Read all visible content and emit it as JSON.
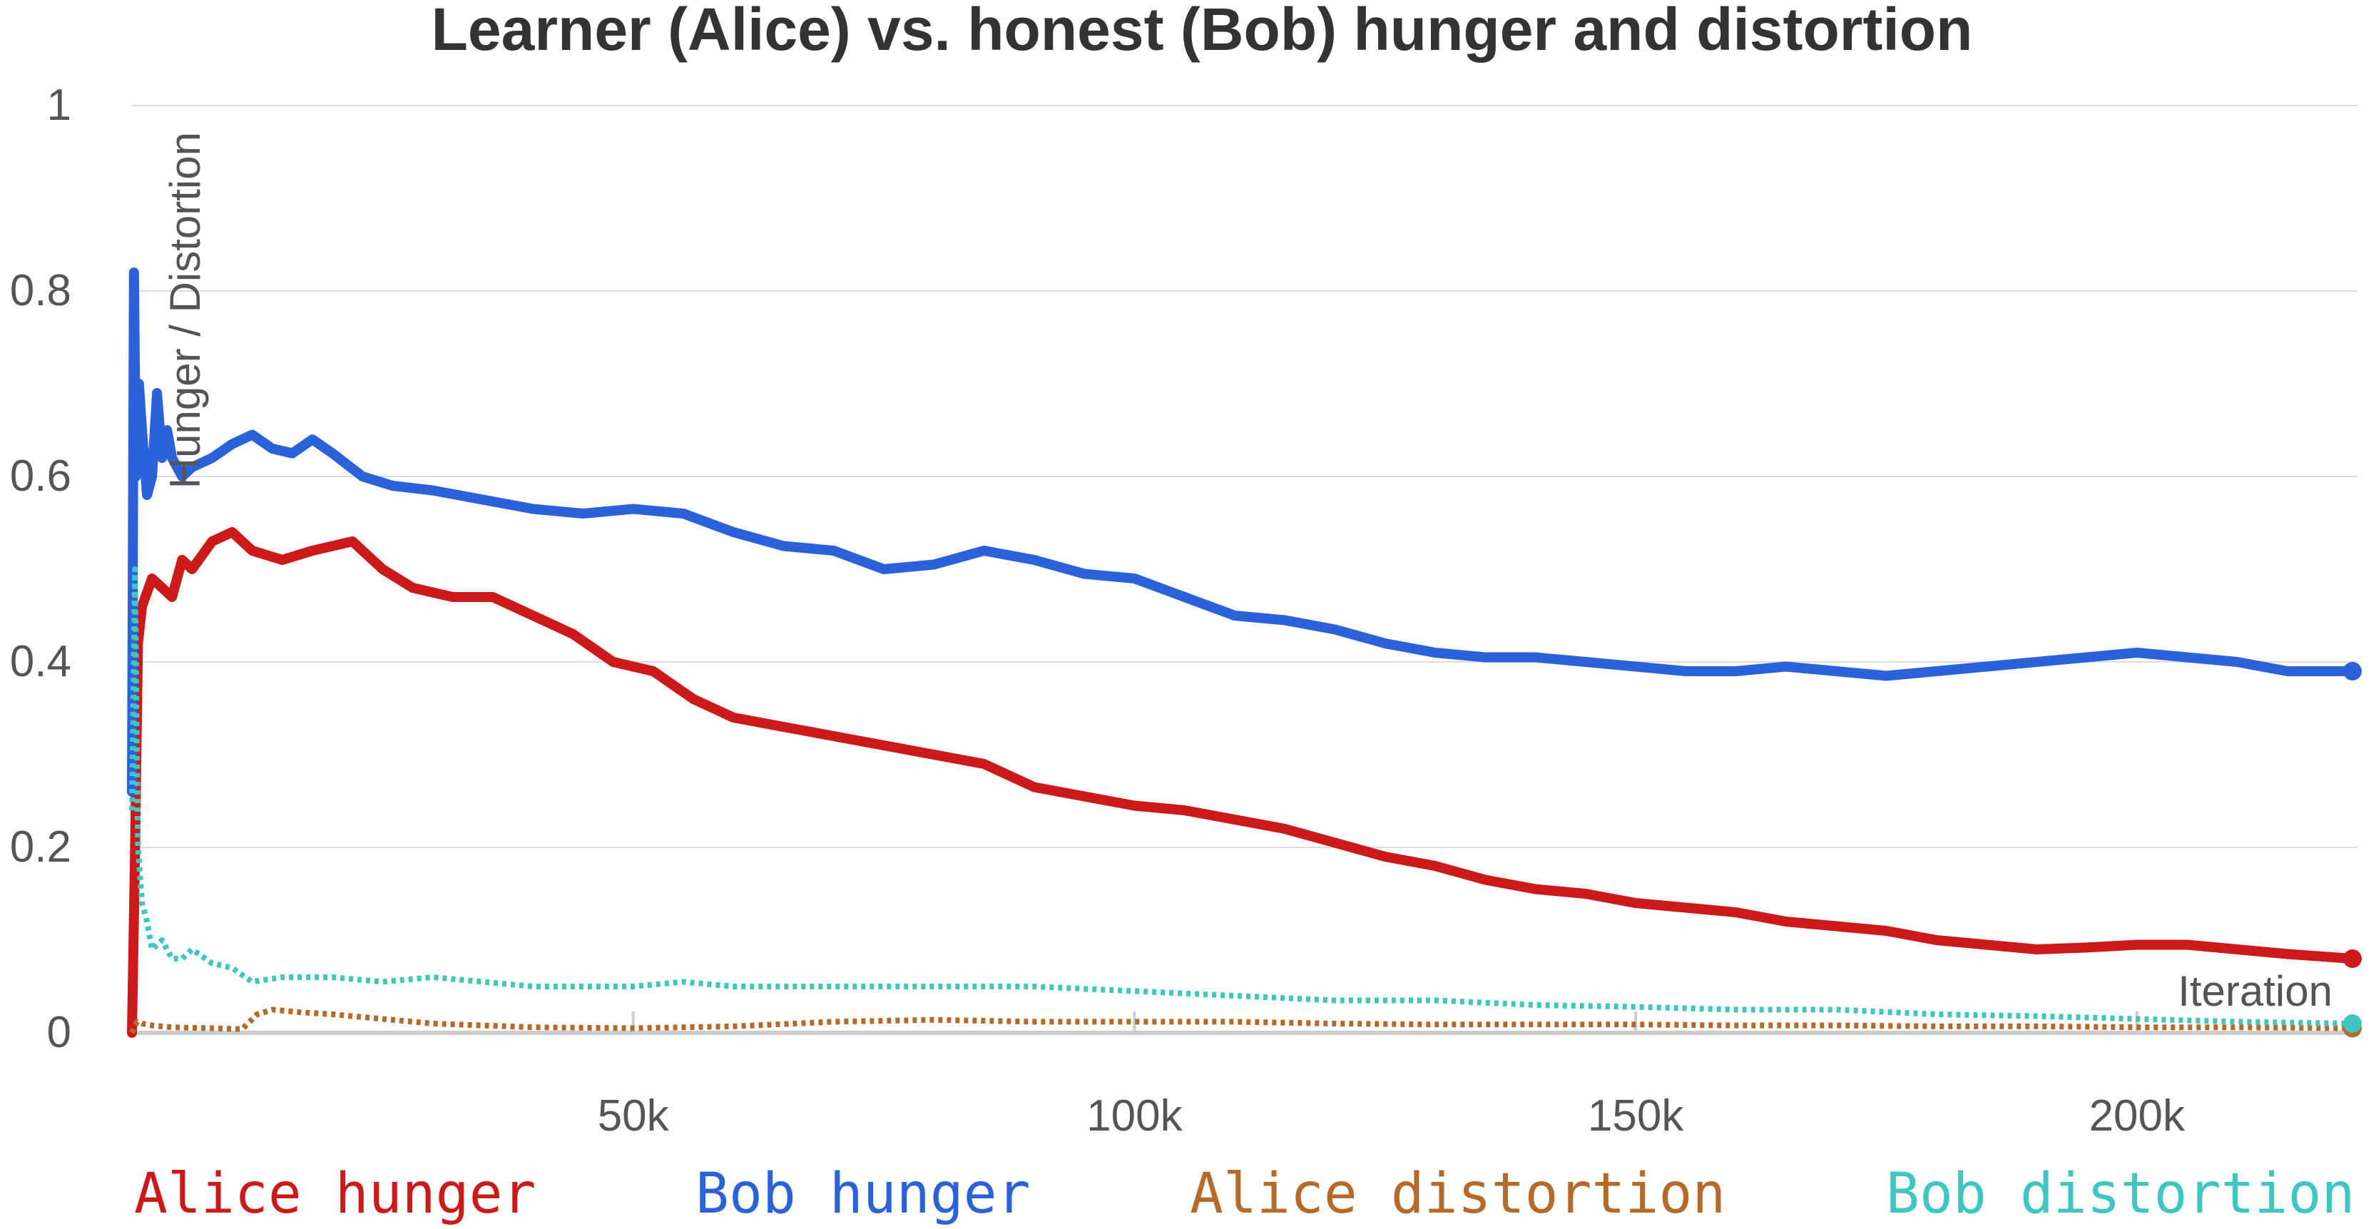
{
  "chart_data": {
    "type": "line",
    "title": "Learner (Alice) vs. honest (Bob) hunger and distortion",
    "xlabel": "Iteration",
    "ylabel": "Hunger / Distortion",
    "xlim": [
      0,
      222000
    ],
    "ylim": [
      0,
      1
    ],
    "x_ticks": [
      {
        "value": 50000,
        "label": "50k"
      },
      {
        "value": 100000,
        "label": "100k"
      },
      {
        "value": 150000,
        "label": "150k"
      },
      {
        "value": 200000,
        "label": "200k"
      }
    ],
    "y_ticks": [
      {
        "value": 0,
        "label": "0"
      },
      {
        "value": 0.2,
        "label": "0.2"
      },
      {
        "value": 0.4,
        "label": "0.4"
      },
      {
        "value": 0.6,
        "label": "0.6"
      },
      {
        "value": 0.8,
        "label": "0.8"
      },
      {
        "value": 1,
        "label": "1"
      }
    ],
    "grid": true,
    "legend_position": "bottom",
    "series": [
      {
        "name": "Alice hunger",
        "color": "#cc1a1a",
        "style": "solid",
        "x": [
          0,
          300,
          600,
          1000,
          2000,
          3000,
          4000,
          5000,
          6000,
          8000,
          10000,
          12000,
          15000,
          18000,
          22000,
          25000,
          28000,
          32000,
          36000,
          40000,
          44000,
          48000,
          52000,
          56000,
          60000,
          65000,
          70000,
          75000,
          80000,
          85000,
          90000,
          95000,
          100000,
          105000,
          110000,
          115000,
          120000,
          125000,
          130000,
          135000,
          140000,
          145000,
          150000,
          155000,
          160000,
          165000,
          170000,
          175000,
          180000,
          185000,
          190000,
          195000,
          200000,
          205000,
          210000,
          215000,
          221500
        ],
        "y": [
          0.0,
          0.19,
          0.42,
          0.46,
          0.49,
          0.48,
          0.47,
          0.51,
          0.5,
          0.53,
          0.54,
          0.52,
          0.51,
          0.52,
          0.53,
          0.5,
          0.48,
          0.47,
          0.47,
          0.45,
          0.43,
          0.4,
          0.39,
          0.36,
          0.34,
          0.33,
          0.32,
          0.31,
          0.3,
          0.29,
          0.265,
          0.255,
          0.245,
          0.24,
          0.23,
          0.22,
          0.205,
          0.19,
          0.18,
          0.165,
          0.155,
          0.15,
          0.14,
          0.135,
          0.13,
          0.12,
          0.115,
          0.11,
          0.1,
          0.095,
          0.09,
          0.092,
          0.095,
          0.095,
          0.09,
          0.085,
          0.08
        ]
      },
      {
        "name": "Bob hunger",
        "color": "#2b62d9",
        "style": "solid",
        "x": [
          0,
          200,
          400,
          700,
          1000,
          1500,
          2000,
          2500,
          3000,
          3500,
          4000,
          5000,
          6000,
          8000,
          10000,
          12000,
          14000,
          16000,
          18000,
          20000,
          23000,
          26000,
          30000,
          35000,
          40000,
          45000,
          50000,
          55000,
          60000,
          65000,
          70000,
          75000,
          80000,
          85000,
          90000,
          95000,
          100000,
          105000,
          110000,
          115000,
          120000,
          125000,
          130000,
          135000,
          140000,
          145000,
          150000,
          155000,
          160000,
          165000,
          170000,
          175000,
          180000,
          185000,
          190000,
          195000,
          200000,
          205000,
          210000,
          215000,
          221500
        ],
        "y": [
          0.26,
          0.82,
          0.6,
          0.7,
          0.65,
          0.58,
          0.6,
          0.69,
          0.62,
          0.65,
          0.62,
          0.6,
          0.61,
          0.62,
          0.635,
          0.645,
          0.63,
          0.625,
          0.64,
          0.625,
          0.6,
          0.59,
          0.585,
          0.575,
          0.565,
          0.56,
          0.565,
          0.56,
          0.54,
          0.525,
          0.52,
          0.5,
          0.505,
          0.52,
          0.51,
          0.495,
          0.49,
          0.47,
          0.45,
          0.445,
          0.435,
          0.42,
          0.41,
          0.405,
          0.405,
          0.4,
          0.395,
          0.39,
          0.39,
          0.395,
          0.39,
          0.385,
          0.39,
          0.395,
          0.4,
          0.405,
          0.41,
          0.405,
          0.4,
          0.39,
          0.39
        ]
      },
      {
        "name": "Alice distortion",
        "color": "#b56a2a",
        "style": "dotted",
        "x": [
          0,
          500,
          1000,
          2000,
          4000,
          8000,
          11000,
          12500,
          14000,
          17000,
          20000,
          25000,
          30000,
          40000,
          50000,
          60000,
          70000,
          80000,
          90000,
          100000,
          110000,
          120000,
          130000,
          140000,
          150000,
          160000,
          170000,
          180000,
          190000,
          200000,
          210000,
          221500
        ],
        "y": [
          0.0,
          0.012,
          0.01,
          0.008,
          0.006,
          0.005,
          0.004,
          0.02,
          0.025,
          0.022,
          0.02,
          0.015,
          0.01,
          0.006,
          0.005,
          0.007,
          0.012,
          0.014,
          0.012,
          0.012,
          0.012,
          0.01,
          0.009,
          0.009,
          0.009,
          0.008,
          0.008,
          0.007,
          0.007,
          0.006,
          0.006,
          0.005
        ]
      },
      {
        "name": "Bob distortion",
        "color": "#3fc6c0",
        "style": "dotted",
        "x": [
          0,
          300,
          600,
          1000,
          1500,
          2000,
          3000,
          4000,
          5000,
          6000,
          8000,
          10000,
          12000,
          15000,
          20000,
          25000,
          30000,
          35000,
          40000,
          45000,
          50000,
          55000,
          60000,
          70000,
          80000,
          90000,
          100000,
          110000,
          120000,
          130000,
          140000,
          150000,
          160000,
          170000,
          180000,
          190000,
          200000,
          210000,
          221500
        ],
        "y": [
          0.24,
          0.5,
          0.2,
          0.14,
          0.12,
          0.09,
          0.1,
          0.08,
          0.08,
          0.09,
          0.075,
          0.07,
          0.055,
          0.06,
          0.06,
          0.055,
          0.06,
          0.055,
          0.05,
          0.05,
          0.05,
          0.055,
          0.05,
          0.05,
          0.05,
          0.05,
          0.045,
          0.04,
          0.035,
          0.035,
          0.03,
          0.028,
          0.025,
          0.025,
          0.02,
          0.018,
          0.015,
          0.012,
          0.01
        ]
      }
    ]
  }
}
